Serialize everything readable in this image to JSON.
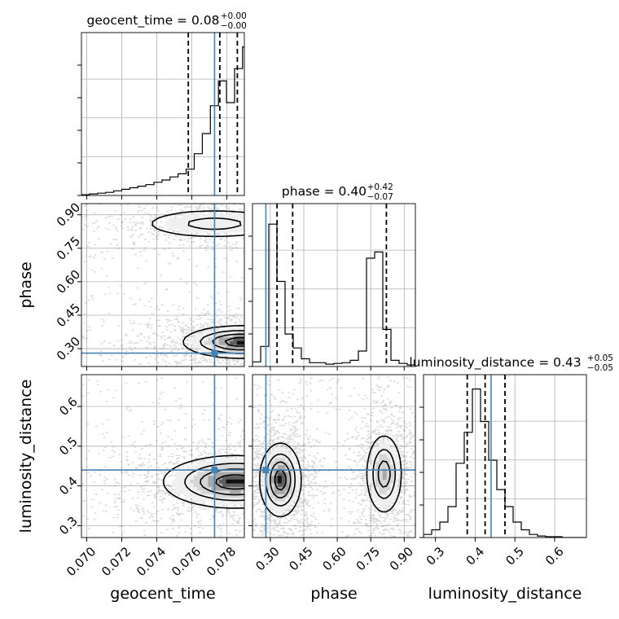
{
  "chart_data": {
    "type": "corner",
    "parameters": [
      "geocent_time",
      "phase",
      "luminosity_distance"
    ],
    "truths": {
      "geocent_time": 0.0773,
      "phase": 0.28,
      "luminosity_distance": 0.44
    },
    "truth_color": "#4682b4",
    "titles": [
      {
        "param": "geocent_time",
        "text": "geocent_time = 0.08",
        "plus": "+0.00",
        "minus": "−0.00"
      },
      {
        "param": "phase",
        "text": "phase = 0.40",
        "plus": "+0.42",
        "minus": "−0.07"
      },
      {
        "param": "luminosity_distance",
        "text": "luminosity_distance = 0.43",
        "plus": "+0.05",
        "minus": "−0.05"
      }
    ],
    "axes": {
      "geocent_time": {
        "label": "geocent_time",
        "range": [
          0.0697,
          0.079
        ],
        "ticks": [
          0.07,
          0.072,
          0.074,
          0.076,
          0.078
        ],
        "tick_labels": [
          "0.070",
          "0.072",
          "0.074",
          "0.076",
          "0.078"
        ]
      },
      "phase": {
        "label": "phase",
        "range": [
          0.22,
          0.95
        ],
        "ticks": [
          0.3,
          0.45,
          0.6,
          0.75,
          0.9
        ],
        "tick_labels": [
          "0.30",
          "0.45",
          "0.60",
          "0.75",
          "0.90"
        ]
      },
      "luminosity_distance": {
        "label": "luminosity_distance",
        "range": [
          0.27,
          0.68
        ],
        "ticks": [
          0.3,
          0.4,
          0.5,
          0.6
        ],
        "tick_labels": [
          "0.3",
          "0.4",
          "0.5",
          "0.6"
        ]
      }
    },
    "histograms": {
      "geocent_time": {
        "quantiles": [
          0.0758,
          0.0776,
          0.0786
        ],
        "bin_edges": [
          0.0697,
          0.07016,
          0.07062,
          0.07108,
          0.07154,
          0.072,
          0.07246,
          0.07292,
          0.07338,
          0.07384,
          0.0743,
          0.07476,
          0.07522,
          0.07568,
          0.07614,
          0.0766,
          0.07706,
          0.07752,
          0.07798,
          0.07844,
          0.0789,
          0.079
        ],
        "counts": [
          0.005,
          0.01,
          0.015,
          0.02,
          0.03,
          0.04,
          0.05,
          0.06,
          0.07,
          0.085,
          0.1,
          0.12,
          0.14,
          0.17,
          0.27,
          0.4,
          0.58,
          0.74,
          0.6,
          0.82,
          0.96
        ]
      },
      "phase": {
        "quantiles": [
          0.33,
          0.4,
          0.82
        ],
        "bin_edges": [
          0.22,
          0.2565,
          0.293,
          0.3295,
          0.366,
          0.4025,
          0.439,
          0.4755,
          0.512,
          0.5485,
          0.585,
          0.6215,
          0.658,
          0.6945,
          0.731,
          0.7675,
          0.804,
          0.8405,
          0.877,
          0.9135,
          0.95
        ],
        "counts": [
          0.03,
          0.13,
          0.92,
          0.55,
          0.21,
          0.12,
          0.05,
          0.025,
          0.025,
          0.015,
          0.02,
          0.025,
          0.04,
          0.1,
          0.7,
          0.74,
          0.24,
          0.04,
          0.02,
          0.01
        ]
      },
      "luminosity_distance": {
        "quantiles": [
          0.38,
          0.425,
          0.475
        ],
        "bin_edges": [
          0.27,
          0.2905,
          0.311,
          0.3315,
          0.352,
          0.3725,
          0.393,
          0.4135,
          0.434,
          0.4545,
          0.475,
          0.4955,
          0.516,
          0.5365,
          0.557,
          0.5775,
          0.598,
          0.6185,
          0.639,
          0.6595,
          0.68
        ],
        "counts": [
          0.02,
          0.05,
          0.1,
          0.2,
          0.48,
          0.68,
          0.96,
          0.75,
          0.5,
          0.31,
          0.2,
          0.1,
          0.05,
          0.02,
          0.01,
          0.005,
          0.005,
          0,
          0,
          0
        ]
      }
    },
    "density_2d": [
      {
        "x": "geocent_time",
        "y": "phase",
        "modes": [
          {
            "x": 0.0788,
            "y": 0.33,
            "sx": 0.0016,
            "sy": 0.035,
            "w": 1.0
          },
          {
            "x": 0.0773,
            "y": 0.86,
            "sx": 0.0022,
            "sy": 0.035,
            "w": 0.45
          }
        ]
      },
      {
        "x": "geocent_time",
        "y": "luminosity_distance",
        "modes": [
          {
            "x": 0.0785,
            "y": 0.41,
            "sx": 0.002,
            "sy": 0.032,
            "w": 1.0
          }
        ]
      },
      {
        "x": "phase",
        "y": "luminosity_distance",
        "modes": [
          {
            "x": 0.345,
            "y": 0.415,
            "sx": 0.045,
            "sy": 0.045,
            "w": 1.0
          },
          {
            "x": 0.81,
            "y": 0.43,
            "sx": 0.04,
            "sy": 0.05,
            "w": 0.75
          }
        ]
      }
    ]
  }
}
